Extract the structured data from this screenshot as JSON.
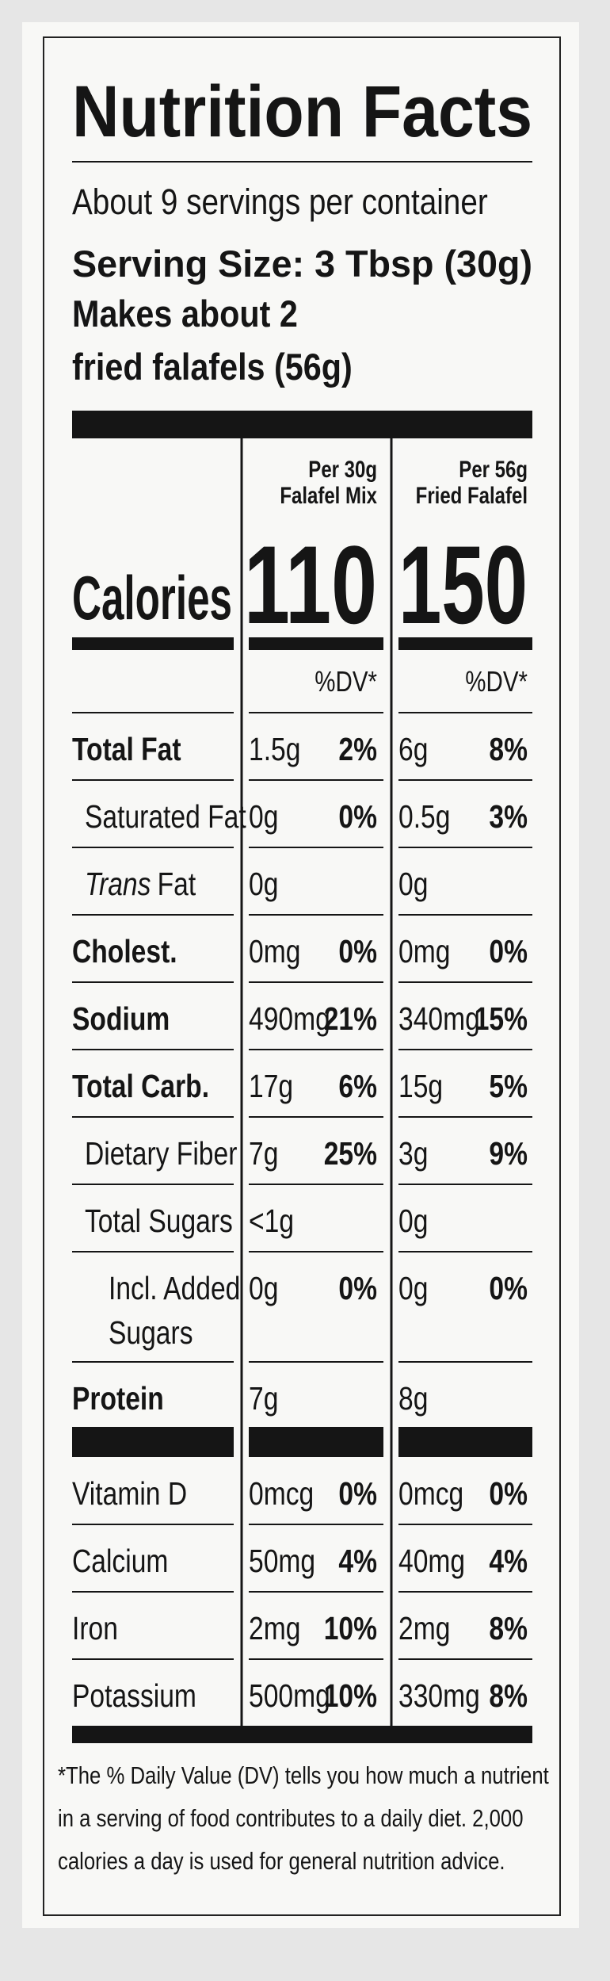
{
  "title": "Nutrition Facts",
  "servings_per_container": "About 9 servings per container",
  "serving_size": "Serving Size: 3 Tbsp (30g)",
  "makes": [
    "Makes about 2",
    "fried falafels (56g)"
  ],
  "calories_label": "Calories",
  "columns": [
    {
      "header": [
        "Per 30g",
        "Falafel Mix"
      ],
      "calories": 110,
      "dv_header": "%DV*"
    },
    {
      "header": [
        "Per 56g",
        "Fried Falafel"
      ],
      "calories": 150,
      "dv_header": "%DV*"
    }
  ],
  "nutrients": [
    {
      "name": "Total Fat",
      "bold": true,
      "indent": 0,
      "values": [
        [
          "1.5g",
          "2%"
        ],
        [
          "6g",
          "8%"
        ]
      ]
    },
    {
      "name": "Saturated Fat",
      "bold": false,
      "indent": 1,
      "values": [
        [
          "0g",
          "0%"
        ],
        [
          "0.5g",
          "3%"
        ]
      ]
    },
    {
      "name_parts": [
        "Trans",
        "Fat"
      ],
      "bold": false,
      "indent": 1,
      "values": [
        [
          "0g"
        ],
        [
          "0g"
        ]
      ]
    },
    {
      "name": "Cholest.",
      "bold": true,
      "indent": 0,
      "values": [
        [
          "0mg",
          "0%"
        ],
        [
          "0mg",
          "0%"
        ]
      ]
    },
    {
      "name": "Sodium",
      "bold": true,
      "indent": 0,
      "values": [
        [
          "490mg",
          "21%"
        ],
        [
          "340mg",
          "15%"
        ]
      ]
    },
    {
      "name": "Total Carb.",
      "bold": true,
      "indent": 0,
      "values": [
        [
          "17g",
          "6%"
        ],
        [
          "15g",
          "5%"
        ]
      ]
    },
    {
      "name": "Dietary Fiber",
      "bold": false,
      "indent": 1,
      "values": [
        [
          "7g",
          "25%"
        ],
        [
          "3g",
          "9%"
        ]
      ]
    },
    {
      "name": "Total Sugars",
      "bold": false,
      "indent": 1,
      "values": [
        [
          "<1g"
        ],
        [
          "0g"
        ]
      ]
    },
    {
      "name_lines": [
        "Incl. Added",
        "Sugars"
      ],
      "bold": false,
      "indent": 2,
      "values": [
        [
          "0g",
          "0%"
        ],
        [
          "0g",
          "0%"
        ]
      ]
    },
    {
      "name": "Protein",
      "bold": true,
      "indent": 0,
      "values": [
        [
          "7g"
        ],
        [
          "8g"
        ]
      ]
    }
  ],
  "vitamins": [
    {
      "name": "Vitamin D",
      "values": [
        [
          "0mcg",
          "0%"
        ],
        [
          "0mcg",
          "0%"
        ]
      ]
    },
    {
      "name": "Calcium",
      "values": [
        [
          "50mg",
          "4%"
        ],
        [
          "40mg",
          "4%"
        ]
      ]
    },
    {
      "name": "Iron",
      "values": [
        [
          "2mg",
          "10%"
        ],
        [
          "2mg",
          "8%"
        ]
      ]
    },
    {
      "name": "Potassium",
      "values": [
        [
          "500mg",
          "10%"
        ],
        [
          "330mg",
          "8%"
        ]
      ]
    }
  ],
  "footnote": [
    "*The % Daily Value (DV) tells you how much a nutrient",
    "in a serving of food contributes to a daily diet. 2,000",
    "calories a day is used for general nutrition advice."
  ]
}
